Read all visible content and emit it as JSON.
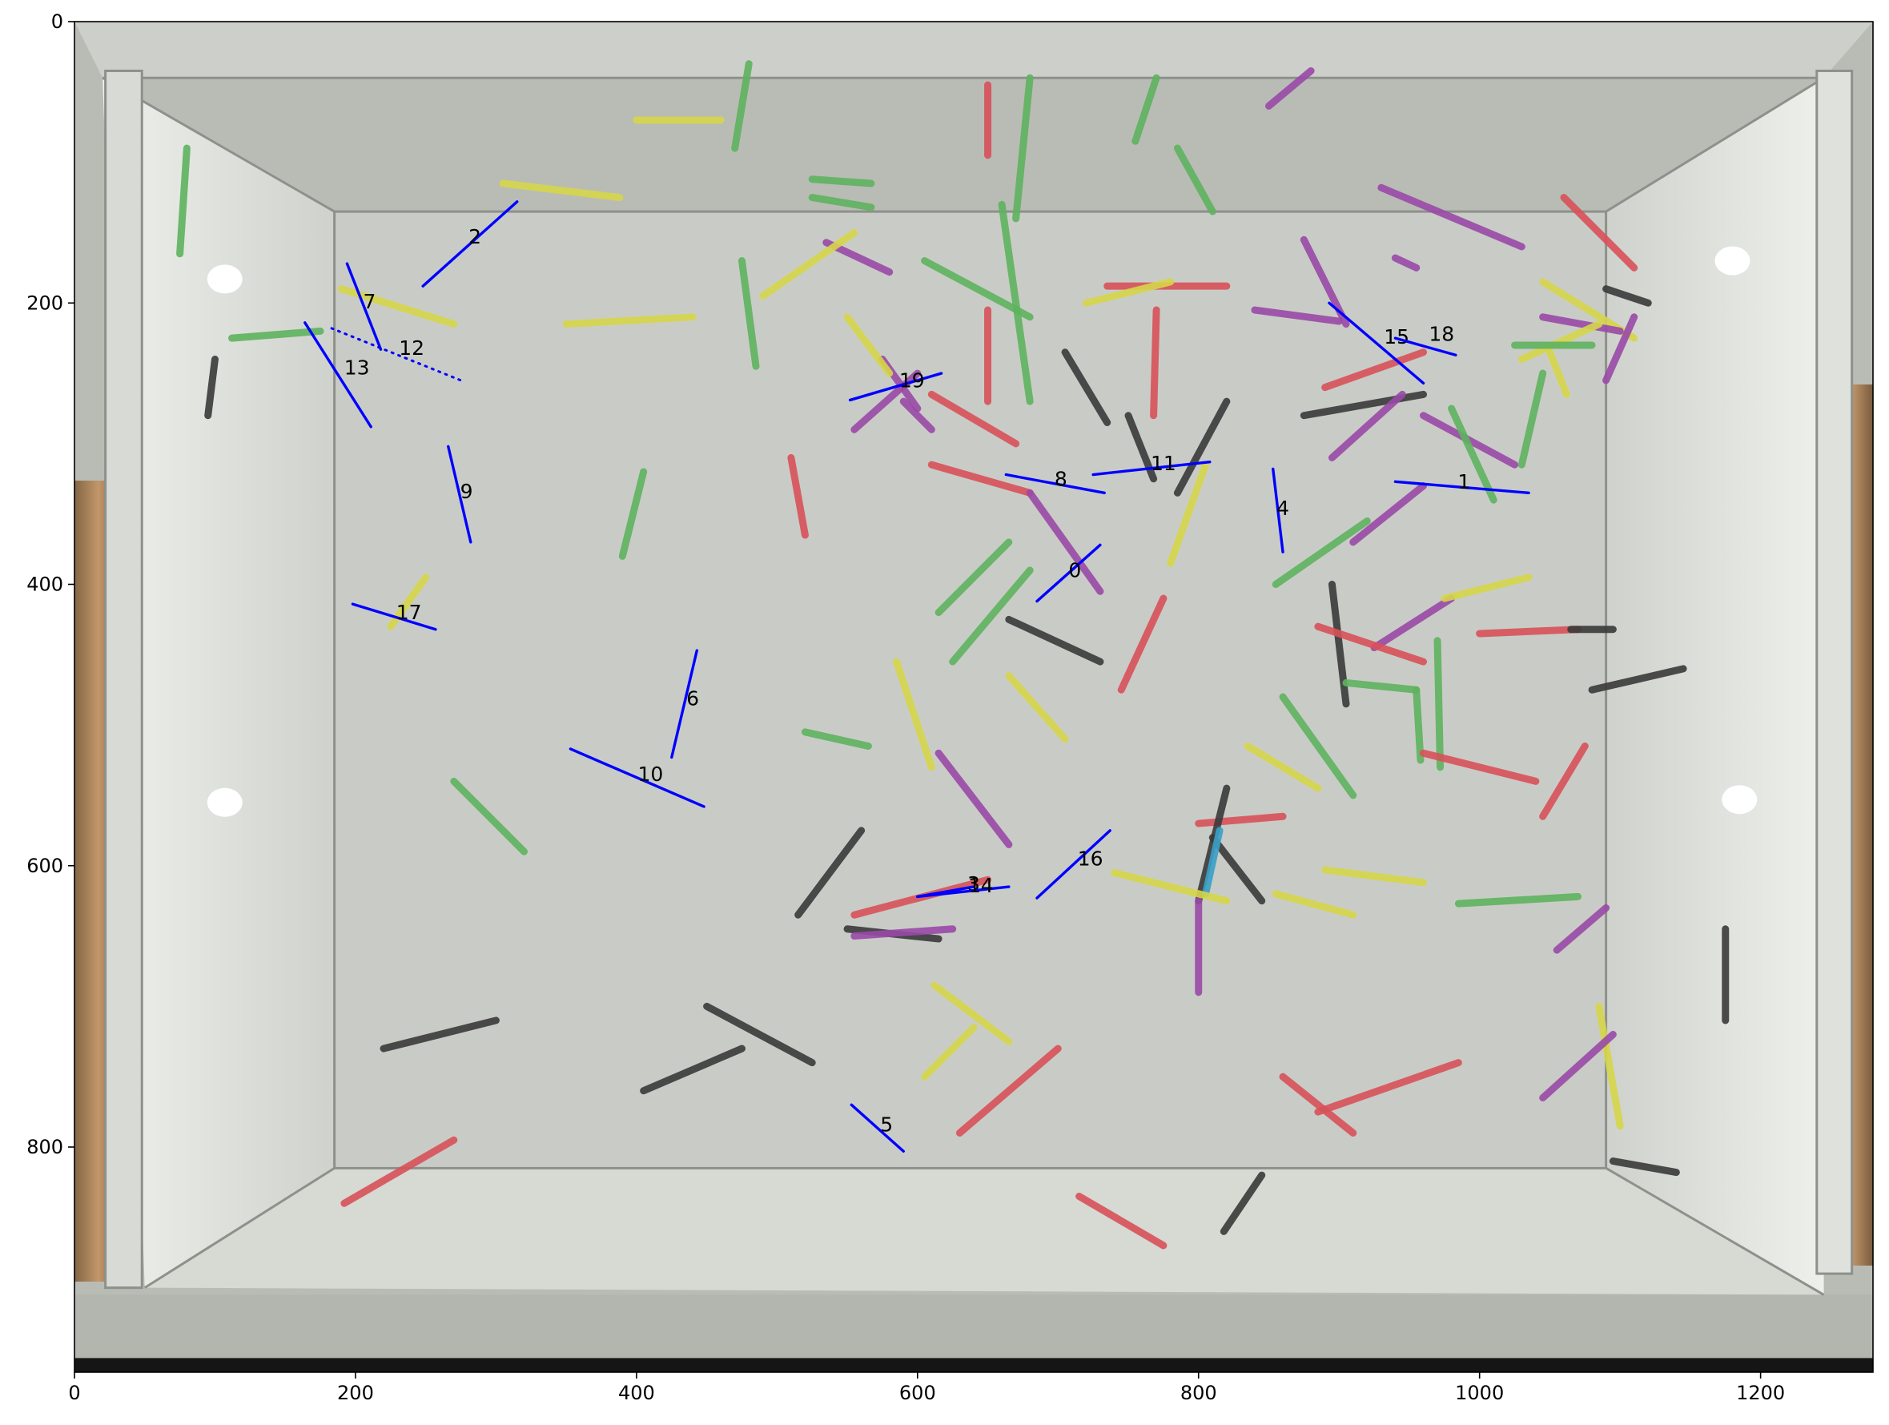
{
  "figure": {
    "x_ticks": [
      0,
      200,
      400,
      600,
      800,
      1000,
      1200
    ],
    "y_ticks": [
      0,
      200,
      400,
      600,
      800
    ],
    "x_range": [
      0,
      1280
    ],
    "y_range": [
      960,
      0
    ]
  },
  "scene": {
    "tank_wall_color": "#c7c9c3",
    "tank_floor_color": "#dadbd6",
    "frame_color": "#9fa39c",
    "copper_color": "#a67c52",
    "stick_colors": {
      "red": "#d9515a",
      "green": "#5fb35f",
      "yellow": "#d6d64b",
      "purple": "#9a4aa8",
      "black": "#3a3a3a",
      "blue": "#3aa0c8"
    },
    "sticks": [
      {
        "c": "yellow",
        "x1": 305,
        "y1": 115,
        "x2": 388,
        "y2": 125
      },
      {
        "c": "green",
        "x1": 525,
        "y1": 112,
        "x2": 567,
        "y2": 115
      },
      {
        "c": "green",
        "x1": 525,
        "y1": 125,
        "x2": 567,
        "y2": 132
      },
      {
        "c": "green",
        "x1": 475,
        "y1": 170,
        "x2": 485,
        "y2": 245
      },
      {
        "c": "yellow",
        "x1": 190,
        "y1": 190,
        "x2": 270,
        "y2": 215
      },
      {
        "c": "yellow",
        "x1": 350,
        "y1": 215,
        "x2": 440,
        "y2": 210
      },
      {
        "c": "green",
        "x1": 112,
        "y1": 225,
        "x2": 175,
        "y2": 220
      },
      {
        "c": "purple",
        "x1": 535,
        "y1": 157,
        "x2": 580,
        "y2": 178
      },
      {
        "c": "yellow",
        "x1": 490,
        "y1": 195,
        "x2": 555,
        "y2": 150
      },
      {
        "c": "green",
        "x1": 605,
        "y1": 170,
        "x2": 680,
        "y2": 210
      },
      {
        "c": "green",
        "x1": 660,
        "y1": 130,
        "x2": 680,
        "y2": 270
      },
      {
        "c": "red",
        "x1": 650,
        "y1": 205,
        "x2": 650,
        "y2": 270
      },
      {
        "c": "green",
        "x1": 785,
        "y1": 90,
        "x2": 810,
        "y2": 135
      },
      {
        "c": "red",
        "x1": 735,
        "y1": 188,
        "x2": 820,
        "y2": 188
      },
      {
        "c": "yellow",
        "x1": 720,
        "y1": 200,
        "x2": 780,
        "y2": 185
      },
      {
        "c": "red",
        "x1": 770,
        "y1": 205,
        "x2": 768,
        "y2": 280
      },
      {
        "c": "purple",
        "x1": 840,
        "y1": 205,
        "x2": 900,
        "y2": 213
      },
      {
        "c": "purple",
        "x1": 875,
        "y1": 155,
        "x2": 905,
        "y2": 215
      },
      {
        "c": "black",
        "x1": 705,
        "y1": 235,
        "x2": 735,
        "y2": 285
      },
      {
        "c": "black",
        "x1": 750,
        "y1": 280,
        "x2": 768,
        "y2": 325
      },
      {
        "c": "black",
        "x1": 785,
        "y1": 335,
        "x2": 820,
        "y2": 270
      },
      {
        "c": "purple",
        "x1": 930,
        "y1": 118,
        "x2": 1030,
        "y2": 160
      },
      {
        "c": "purple",
        "x1": 940,
        "y1": 168,
        "x2": 955,
        "y2": 175
      },
      {
        "c": "red",
        "x1": 1060,
        "y1": 125,
        "x2": 1110,
        "y2": 175
      },
      {
        "c": "red",
        "x1": 890,
        "y1": 260,
        "x2": 960,
        "y2": 235
      },
      {
        "c": "black",
        "x1": 875,
        "y1": 280,
        "x2": 960,
        "y2": 265
      },
      {
        "c": "purple",
        "x1": 895,
        "y1": 310,
        "x2": 945,
        "y2": 265
      },
      {
        "c": "purple",
        "x1": 960,
        "y1": 280,
        "x2": 1025,
        "y2": 315
      },
      {
        "c": "green",
        "x1": 980,
        "y1": 275,
        "x2": 1010,
        "y2": 340
      },
      {
        "c": "yellow",
        "x1": 1045,
        "y1": 185,
        "x2": 1110,
        "y2": 225
      },
      {
        "c": "purple",
        "x1": 1045,
        "y1": 210,
        "x2": 1100,
        "y2": 220
      },
      {
        "c": "purple",
        "x1": 1090,
        "y1": 255,
        "x2": 1110,
        "y2": 210
      },
      {
        "c": "yellow",
        "x1": 1030,
        "y1": 240,
        "x2": 1085,
        "y2": 215
      },
      {
        "c": "green",
        "x1": 1025,
        "y1": 230,
        "x2": 1080,
        "y2": 230
      },
      {
        "c": "green",
        "x1": 1030,
        "y1": 315,
        "x2": 1045,
        "y2": 250
      },
      {
        "c": "black",
        "x1": 1090,
        "y1": 190,
        "x2": 1120,
        "y2": 200
      },
      {
        "c": "yellow",
        "x1": 1050,
        "y1": 235,
        "x2": 1062,
        "y2": 265
      },
      {
        "c": "purple",
        "x1": 575,
        "y1": 240,
        "x2": 600,
        "y2": 275
      },
      {
        "c": "yellow",
        "x1": 550,
        "y1": 210,
        "x2": 580,
        "y2": 250
      },
      {
        "c": "purple",
        "x1": 590,
        "y1": 270,
        "x2": 610,
        "y2": 290
      },
      {
        "c": "purple",
        "x1": 555,
        "y1": 290,
        "x2": 600,
        "y2": 250
      },
      {
        "c": "red",
        "x1": 610,
        "y1": 265,
        "x2": 670,
        "y2": 300
      },
      {
        "c": "red",
        "x1": 510,
        "y1": 310,
        "x2": 520,
        "y2": 365
      },
      {
        "c": "green",
        "x1": 390,
        "y1": 380,
        "x2": 405,
        "y2": 320
      },
      {
        "c": "red",
        "x1": 610,
        "y1": 315,
        "x2": 680,
        "y2": 335
      },
      {
        "c": "purple",
        "x1": 680,
        "y1": 335,
        "x2": 730,
        "y2": 405
      },
      {
        "c": "green",
        "x1": 615,
        "y1": 420,
        "x2": 665,
        "y2": 370
      },
      {
        "c": "green",
        "x1": 625,
        "y1": 455,
        "x2": 680,
        "y2": 390
      },
      {
        "c": "black",
        "x1": 665,
        "y1": 425,
        "x2": 730,
        "y2": 455
      },
      {
        "c": "red",
        "x1": 745,
        "y1": 475,
        "x2": 775,
        "y2": 410
      },
      {
        "c": "yellow",
        "x1": 780,
        "y1": 385,
        "x2": 805,
        "y2": 315
      },
      {
        "c": "green",
        "x1": 855,
        "y1": 400,
        "x2": 920,
        "y2": 355
      },
      {
        "c": "purple",
        "x1": 910,
        "y1": 370,
        "x2": 960,
        "y2": 330
      },
      {
        "c": "purple",
        "x1": 925,
        "y1": 445,
        "x2": 980,
        "y2": 410
      },
      {
        "c": "yellow",
        "x1": 975,
        "y1": 410,
        "x2": 1035,
        "y2": 395
      },
      {
        "c": "red",
        "x1": 1000,
        "y1": 435,
        "x2": 1070,
        "y2": 432
      },
      {
        "c": "black",
        "x1": 1065,
        "y1": 432,
        "x2": 1095,
        "y2": 432
      },
      {
        "c": "black",
        "x1": 895,
        "y1": 400,
        "x2": 905,
        "y2": 485
      },
      {
        "c": "red",
        "x1": 885,
        "y1": 430,
        "x2": 960,
        "y2": 455
      },
      {
        "c": "green",
        "x1": 905,
        "y1": 470,
        "x2": 955,
        "y2": 475
      },
      {
        "c": "green",
        "x1": 955,
        "y1": 475,
        "x2": 958,
        "y2": 525
      },
      {
        "c": "green",
        "x1": 970,
        "y1": 440,
        "x2": 972,
        "y2": 530
      },
      {
        "c": "red",
        "x1": 960,
        "y1": 520,
        "x2": 1040,
        "y2": 540
      },
      {
        "c": "red",
        "x1": 1045,
        "y1": 565,
        "x2": 1075,
        "y2": 515
      },
      {
        "c": "black",
        "x1": 1080,
        "y1": 475,
        "x2": 1145,
        "y2": 460
      },
      {
        "c": "green",
        "x1": 860,
        "y1": 480,
        "x2": 910,
        "y2": 550
      },
      {
        "c": "yellow",
        "x1": 835,
        "y1": 515,
        "x2": 885,
        "y2": 545
      },
      {
        "c": "yellow",
        "x1": 665,
        "y1": 465,
        "x2": 705,
        "y2": 510
      },
      {
        "c": "green",
        "x1": 520,
        "y1": 505,
        "x2": 565,
        "y2": 515
      },
      {
        "c": "yellow",
        "x1": 585,
        "y1": 455,
        "x2": 610,
        "y2": 530
      },
      {
        "c": "purple",
        "x1": 615,
        "y1": 520,
        "x2": 665,
        "y2": 585
      },
      {
        "c": "green",
        "x1": 270,
        "y1": 540,
        "x2": 320,
        "y2": 590
      },
      {
        "c": "yellow",
        "x1": 225,
        "y1": 430,
        "x2": 250,
        "y2": 395
      },
      {
        "c": "black",
        "x1": 515,
        "y1": 635,
        "x2": 560,
        "y2": 575
      },
      {
        "c": "red",
        "x1": 555,
        "y1": 635,
        "x2": 650,
        "y2": 610
      },
      {
        "c": "black",
        "x1": 550,
        "y1": 645,
        "x2": 615,
        "y2": 652
      },
      {
        "c": "purple",
        "x1": 555,
        "y1": 650,
        "x2": 625,
        "y2": 645
      },
      {
        "c": "red",
        "x1": 800,
        "y1": 570,
        "x2": 860,
        "y2": 565
      },
      {
        "c": "black",
        "x1": 810,
        "y1": 580,
        "x2": 845,
        "y2": 625
      },
      {
        "c": "black",
        "x1": 800,
        "y1": 625,
        "x2": 820,
        "y2": 545
      },
      {
        "c": "blue",
        "x1": 805,
        "y1": 620,
        "x2": 815,
        "y2": 575
      },
      {
        "c": "purple",
        "x1": 800,
        "y1": 625,
        "x2": 800,
        "y2": 690
      },
      {
        "c": "yellow",
        "x1": 740,
        "y1": 605,
        "x2": 820,
        "y2": 625
      },
      {
        "c": "yellow",
        "x1": 855,
        "y1": 620,
        "x2": 910,
        "y2": 635
      },
      {
        "c": "yellow",
        "x1": 890,
        "y1": 603,
        "x2": 960,
        "y2": 612
      },
      {
        "c": "green",
        "x1": 985,
        "y1": 627,
        "x2": 1070,
        "y2": 622
      },
      {
        "c": "purple",
        "x1": 1055,
        "y1": 660,
        "x2": 1090,
        "y2": 630
      },
      {
        "c": "black",
        "x1": 1175,
        "y1": 645,
        "x2": 1175,
        "y2": 710
      },
      {
        "c": "yellow",
        "x1": 1085,
        "y1": 700,
        "x2": 1100,
        "y2": 785
      },
      {
        "c": "purple",
        "x1": 1045,
        "y1": 765,
        "x2": 1095,
        "y2": 720
      },
      {
        "c": "black",
        "x1": 1095,
        "y1": 810,
        "x2": 1140,
        "y2": 818
      },
      {
        "c": "red",
        "x1": 885,
        "y1": 775,
        "x2": 985,
        "y2": 740
      },
      {
        "c": "red",
        "x1": 860,
        "y1": 750,
        "x2": 910,
        "y2": 790
      },
      {
        "c": "black",
        "x1": 818,
        "y1": 860,
        "x2": 845,
        "y2": 820
      },
      {
        "c": "red",
        "x1": 715,
        "y1": 835,
        "x2": 775,
        "y2": 870
      },
      {
        "c": "yellow",
        "x1": 612,
        "y1": 685,
        "x2": 665,
        "y2": 725
      },
      {
        "c": "yellow",
        "x1": 605,
        "y1": 750,
        "x2": 640,
        "y2": 715
      },
      {
        "c": "red",
        "x1": 630,
        "y1": 790,
        "x2": 700,
        "y2": 730
      },
      {
        "c": "black",
        "x1": 450,
        "y1": 700,
        "x2": 525,
        "y2": 740
      },
      {
        "c": "black",
        "x1": 405,
        "y1": 760,
        "x2": 475,
        "y2": 730
      },
      {
        "c": "black",
        "x1": 220,
        "y1": 730,
        "x2": 300,
        "y2": 710
      },
      {
        "c": "red",
        "x1": 192,
        "y1": 840,
        "x2": 270,
        "y2": 795
      },
      {
        "c": "green",
        "x1": 75,
        "y1": 165,
        "x2": 80,
        "y2": 90
      },
      {
        "c": "black",
        "x1": 95,
        "y1": 280,
        "x2": 100,
        "y2": 240
      },
      {
        "c": "yellow",
        "x1": 400,
        "y1": 70,
        "x2": 460,
        "y2": 70
      },
      {
        "c": "green",
        "x1": 470,
        "y1": 90,
        "x2": 480,
        "y2": 30
      },
      {
        "c": "red",
        "x1": 650,
        "y1": 95,
        "x2": 650,
        "y2": 45
      },
      {
        "c": "green",
        "x1": 670,
        "y1": 140,
        "x2": 680,
        "y2": 40
      },
      {
        "c": "purple",
        "x1": 850,
        "y1": 60,
        "x2": 880,
        "y2": 35
      },
      {
        "c": "green",
        "x1": 755,
        "y1": 85,
        "x2": 770,
        "y2": 40
      }
    ],
    "lights": [
      {
        "x": 107,
        "y": 183
      },
      {
        "x": 1180,
        "y": 170
      },
      {
        "x": 107,
        "y": 555
      },
      {
        "x": 1185,
        "y": 553
      }
    ]
  },
  "detections": {
    "line_color": "#0000ff",
    "segments": [
      {
        "label": "0",
        "lx": 712,
        "ly": 390,
        "x1": 685,
        "y1": 412,
        "x2": 730,
        "y2": 372
      },
      {
        "label": "1",
        "lx": 989,
        "ly": 327,
        "x1": 940,
        "y1": 327,
        "x2": 1035,
        "y2": 335
      },
      {
        "label": "2",
        "lx": 285,
        "ly": 153,
        "x1": 248,
        "y1": 188,
        "x2": 315,
        "y2": 128
      },
      {
        "label": "3",
        "lx": 640,
        "ly": 613,
        "x1": 600,
        "y1": 622,
        "x2": 640,
        "y2": 615
      },
      {
        "label": "4",
        "lx": 860,
        "ly": 346,
        "x1": 853,
        "y1": 318,
        "x2": 860,
        "y2": 377
      },
      {
        "label": "5",
        "lx": 578,
        "ly": 784,
        "x1": 553,
        "y1": 770,
        "x2": 590,
        "y2": 803
      },
      {
        "label": "6",
        "lx": 440,
        "ly": 481,
        "x1": 425,
        "y1": 523,
        "x2": 443,
        "y2": 447
      },
      {
        "label": "7",
        "lx": 210,
        "ly": 199,
        "x1": 194,
        "y1": 172,
        "x2": 218,
        "y2": 233
      },
      {
        "label": "8",
        "lx": 702,
        "ly": 325,
        "x1": 663,
        "y1": 322,
        "x2": 733,
        "y2": 335
      },
      {
        "label": "9",
        "lx": 279,
        "ly": 334,
        "x1": 266,
        "y1": 302,
        "x2": 282,
        "y2": 370
      },
      {
        "label": "10",
        "lx": 410,
        "ly": 535,
        "x1": 353,
        "y1": 517,
        "x2": 448,
        "y2": 558
      },
      {
        "label": "11",
        "lx": 775,
        "ly": 314,
        "x1": 725,
        "y1": 322,
        "x2": 808,
        "y2": 313
      },
      {
        "label": "12",
        "lx": 240,
        "ly": 232,
        "x1": 183,
        "y1": 218,
        "x2": 275,
        "y2": 255,
        "dotted": true
      },
      {
        "label": "13",
        "lx": 201,
        "ly": 246,
        "x1": 164,
        "y1": 214,
        "x2": 211,
        "y2": 288
      },
      {
        "label": "14",
        "lx": 645,
        "ly": 614,
        "x1": 600,
        "y1": 622,
        "x2": 665,
        "y2": 615
      },
      {
        "label": "15",
        "lx": 941,
        "ly": 224,
        "x1": 893,
        "y1": 200,
        "x2": 960,
        "y2": 257
      },
      {
        "label": "16",
        "lx": 723,
        "ly": 595,
        "x1": 685,
        "y1": 623,
        "x2": 737,
        "y2": 575
      },
      {
        "label": "17",
        "lx": 238,
        "ly": 420,
        "x1": 198,
        "y1": 414,
        "x2": 257,
        "y2": 432
      },
      {
        "label": "18",
        "lx": 973,
        "ly": 222,
        "x1": 940,
        "y1": 225,
        "x2": 983,
        "y2": 237
      },
      {
        "label": "19",
        "lx": 596,
        "ly": 255,
        "x1": 552,
        "y1": 269,
        "x2": 617,
        "y2": 250
      }
    ]
  }
}
